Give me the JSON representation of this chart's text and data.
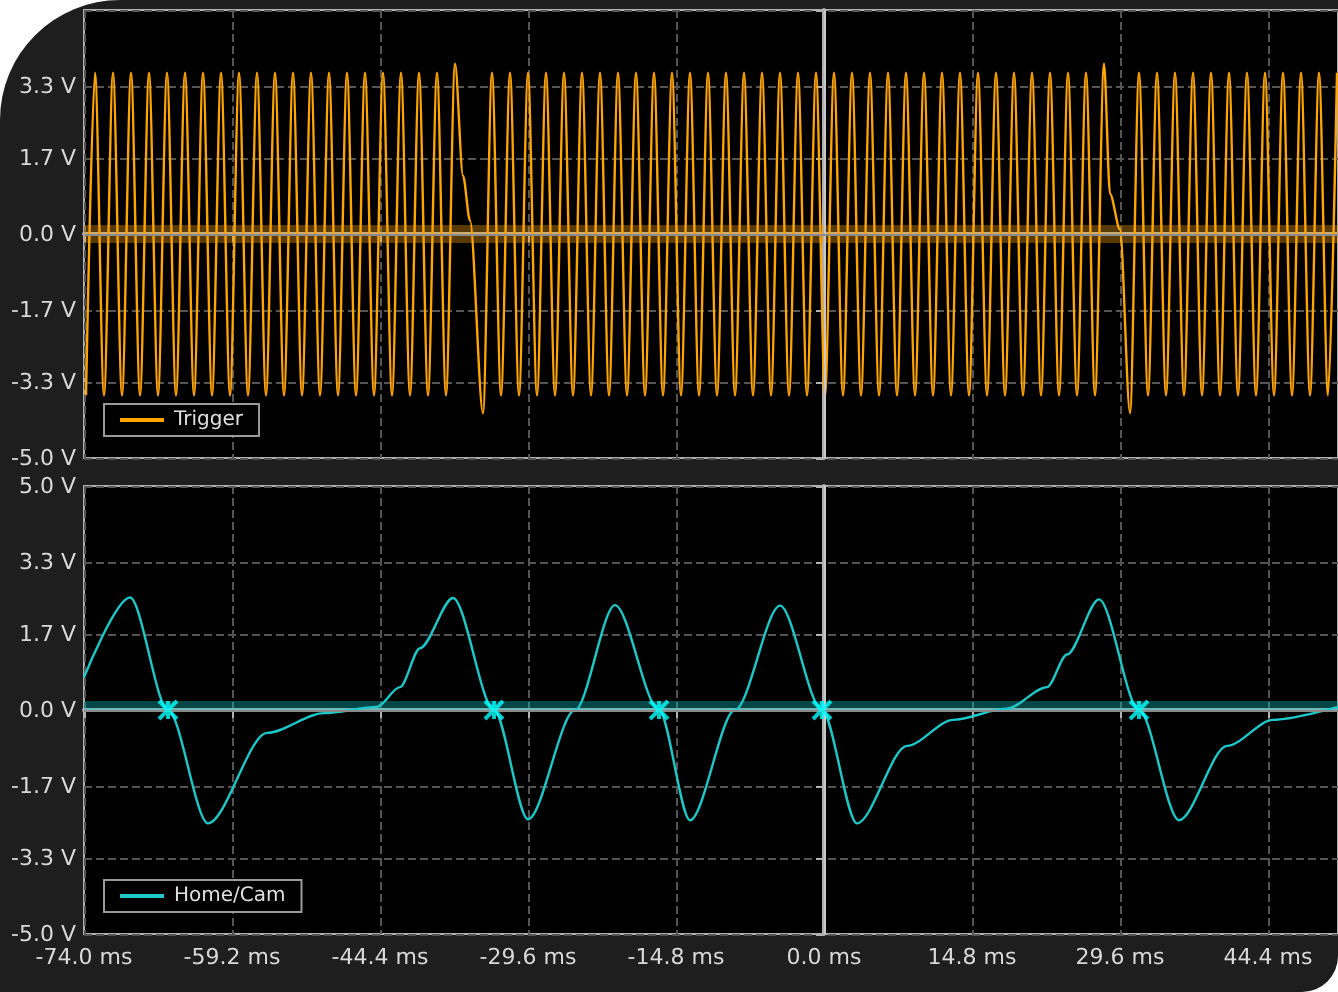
{
  "chart_data": [
    {
      "type": "line",
      "xlim": [
        -74,
        51.4
      ],
      "ylim": [
        -5,
        5
      ],
      "xticks": [
        {
          "value": -74,
          "label": null
        },
        {
          "value": -59.2,
          "label": null
        },
        {
          "value": -44.4,
          "label": null
        },
        {
          "value": -29.6,
          "label": null
        },
        {
          "value": -14.8,
          "label": null
        },
        {
          "value": 0,
          "label": null
        },
        {
          "value": 14.8,
          "label": null
        },
        {
          "value": 29.6,
          "label": null
        },
        {
          "value": 44.4,
          "label": null
        }
      ],
      "yticks": [
        {
          "value": -5,
          "label": "-5.0 V"
        },
        {
          "value": -3.3,
          "label": "-3.3 V"
        },
        {
          "value": -1.7,
          "label": "-1.7 V"
        },
        {
          "value": 0,
          "label": "0.0 V"
        },
        {
          "value": 1.7,
          "label": "1.7 V"
        },
        {
          "value": 3.3,
          "label": "3.3 V"
        },
        {
          "value": 5,
          "label": null
        }
      ],
      "tick_labels": "y",
      "grid": true,
      "legend": "bottom left",
      "marker": "none",
      "ref_lines": [
        {
          "axis": "x",
          "value": 0,
          "color": "#c8c8c8"
        },
        {
          "axis": "y",
          "value": 0,
          "color": "#8a8a8a"
        }
      ],
      "bands": [
        {
          "axis": "y",
          "from": -0.2,
          "to": 0.2,
          "color": "#ffa500"
        }
      ],
      "series": [
        {
          "name": "Trigger",
          "color": "#ffa500",
          "x": [
            -73.8,
            -72.9,
            -72.0,
            -71.1,
            -70.2,
            -69.3,
            -68.4,
            -67.5,
            -66.6,
            -65.7,
            -64.8,
            -63.9,
            -63.0,
            -62.1,
            -61.2,
            -60.3,
            -59.4,
            -58.5,
            -57.6,
            -56.7,
            -55.8,
            -54.9,
            -54.0,
            -53.1,
            -52.2,
            -51.3,
            -50.4,
            -49.5,
            -48.6,
            -47.7,
            -46.8,
            -45.9,
            -45.0,
            -44.1,
            -43.2,
            -42.3,
            -41.4,
            -40.5,
            -39.6,
            -38.7,
            -37.8,
            -36.9,
            -36.1,
            -35.4,
            -34.1,
            -33.2,
            -32.3,
            -31.4,
            -30.5,
            -29.6,
            -28.7,
            -27.8,
            -26.9,
            -26.0,
            -25.1,
            -24.2,
            -23.3,
            -22.4,
            -21.5,
            -20.6,
            -19.7,
            -18.8,
            -17.9,
            -17.0,
            -16.1,
            -15.2,
            -14.3,
            -13.4,
            -12.5,
            -11.6,
            -10.7,
            -9.8,
            -8.9,
            -8.0,
            -7.1,
            -6.2,
            -5.3,
            -4.4,
            -3.5,
            -2.6,
            -1.7,
            -0.8,
            0.1,
            1.0,
            1.9,
            2.8,
            3.7,
            4.6,
            5.5,
            6.4,
            7.3,
            8.2,
            9.1,
            10.0,
            10.9,
            11.8,
            12.7,
            13.6,
            14.5,
            15.4,
            16.3,
            17.2,
            18.1,
            19.0,
            19.9,
            20.8,
            21.7,
            22.6,
            23.5,
            24.4,
            25.3,
            26.2,
            27.1,
            28.0,
            28.6,
            29.6,
            30.6,
            31.5,
            32.4,
            33.3,
            34.2,
            35.1,
            36.0,
            36.9,
            37.8,
            38.7,
            39.6,
            40.5,
            41.4,
            42.3,
            43.2,
            44.1,
            45.0,
            45.9,
            46.8,
            47.7,
            48.6,
            49.5,
            50.4,
            51.3
          ],
          "values": [
            -3.6,
            3.6,
            -3.6,
            3.6,
            -3.6,
            3.6,
            -3.6,
            3.6,
            -3.6,
            3.6,
            -3.6,
            3.6,
            -3.6,
            3.6,
            -3.6,
            3.6,
            -3.6,
            3.6,
            -3.6,
            3.6,
            -3.6,
            3.6,
            -3.6,
            3.6,
            -3.6,
            3.6,
            -3.6,
            3.6,
            -3.6,
            3.6,
            -3.6,
            3.6,
            -3.6,
            3.6,
            -3.6,
            3.6,
            -3.6,
            3.6,
            -3.6,
            3.6,
            -3.6,
            3.8,
            1.3,
            0.3,
            -4.0,
            3.6,
            -3.6,
            3.6,
            -3.6,
            3.6,
            -3.6,
            3.6,
            -3.6,
            3.6,
            -3.6,
            3.6,
            -3.6,
            3.6,
            -3.6,
            3.6,
            -3.6,
            3.6,
            -3.6,
            3.6,
            -3.6,
            3.6,
            -3.6,
            3.6,
            -3.6,
            3.6,
            -3.6,
            3.6,
            -3.6,
            3.6,
            -3.6,
            3.6,
            -3.6,
            3.6,
            -3.6,
            3.6,
            -3.6,
            3.6,
            -3.6,
            3.6,
            -3.6,
            3.6,
            -3.6,
            3.6,
            -3.6,
            3.6,
            -3.6,
            3.6,
            -3.6,
            3.6,
            -3.6,
            3.6,
            -3.6,
            3.6,
            -3.6,
            3.6,
            -3.6,
            3.6,
            -3.6,
            3.6,
            -3.6,
            3.6,
            -3.6,
            3.6,
            -3.6,
            3.6,
            -3.6,
            3.6,
            -3.6,
            3.8,
            0.9,
            0.1,
            -4.0,
            3.6,
            -3.6,
            3.6,
            -3.6,
            3.6,
            -3.6,
            3.6,
            -3.6,
            3.6,
            -3.6,
            3.6,
            -3.6,
            3.6,
            -3.6,
            3.6,
            -3.6,
            3.6,
            -3.6,
            3.6,
            -3.6,
            3.6,
            -3.6,
            3.6
          ]
        }
      ]
    },
    {
      "type": "line",
      "xlim": [
        -74,
        51.4
      ],
      "ylim": [
        -5,
        5
      ],
      "xticks": [
        {
          "value": -74,
          "label": "-74.0 ms"
        },
        {
          "value": -59.2,
          "label": "-59.2 ms"
        },
        {
          "value": -44.4,
          "label": "-44.4 ms"
        },
        {
          "value": -29.6,
          "label": "-29.6 ms"
        },
        {
          "value": -14.8,
          "label": "-14.8 ms"
        },
        {
          "value": 0,
          "label": "0.0 ms"
        },
        {
          "value": 14.8,
          "label": "14.8 ms"
        },
        {
          "value": 29.6,
          "label": "29.6 ms"
        },
        {
          "value": 44.4,
          "label": "44.4 ms"
        }
      ],
      "yticks": [
        {
          "value": -5,
          "label": "-5.0 V"
        },
        {
          "value": -3.3,
          "label": "-3.3 V"
        },
        {
          "value": -1.7,
          "label": "-1.7 V"
        },
        {
          "value": 0,
          "label": "0.0 V"
        },
        {
          "value": 1.7,
          "label": "1.7 V"
        },
        {
          "value": 3.3,
          "label": "3.3 V"
        },
        {
          "value": 5,
          "label": "5.0 V"
        }
      ],
      "grid": true,
      "legend": "bottom left",
      "marker": "none",
      "ref_lines": [
        {
          "axis": "x",
          "value": 0,
          "color": "#c8c8c8"
        },
        {
          "axis": "y",
          "value": 0,
          "color": "#8a8a8a"
        }
      ],
      "bands": [
        {
          "axis": "y",
          "from": 0,
          "to": 0.2,
          "color": "#00c8c8"
        }
      ],
      "series": [
        {
          "name": "Home/Cam",
          "color": "#1ec8c8",
          "x": [
            -74.0,
            -69.4,
            -65.6,
            -61.6,
            -55.7,
            -50.0,
            -44.7,
            -42.4,
            -40.4,
            -37.1,
            -33.0,
            -29.6,
            -24.9,
            -20.9,
            -16.5,
            -13.4,
            -8.9,
            -4.4,
            -0.2,
            3.3,
            8.3,
            12.9,
            18.3,
            22.3,
            24.3,
            27.5,
            31.5,
            35.5,
            40.3,
            44.9,
            51.4
          ],
          "values": [
            0.73,
            2.51,
            0,
            -2.53,
            -0.51,
            -0.07,
            0.07,
            0.51,
            1.38,
            2.5,
            0,
            -2.44,
            0,
            2.34,
            0,
            -2.46,
            0,
            2.33,
            0,
            -2.53,
            -0.8,
            -0.22,
            0.03,
            0.51,
            1.24,
            2.47,
            0,
            -2.46,
            -0.8,
            -0.22,
            0.07
          ]
        },
        {
          "type": "scatter",
          "marker": "cross",
          "color": "#00ffff",
          "x": [
            -65.6,
            -33.0,
            -16.5,
            -0.2,
            31.5
          ],
          "values": [
            0,
            0,
            0,
            0,
            0
          ]
        }
      ]
    }
  ]
}
